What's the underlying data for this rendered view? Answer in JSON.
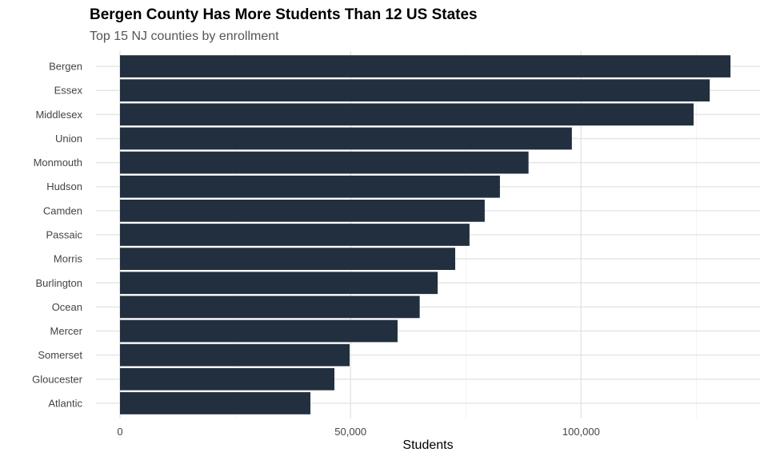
{
  "chart_data": {
    "type": "bar",
    "orientation": "horizontal",
    "title": "Bergen County Has More Students Than 12 US States",
    "subtitle": "Top 15 NJ counties by enrollment",
    "xlabel": "Students",
    "ylabel": "",
    "categories": [
      "Bergen",
      "Essex",
      "Middlesex",
      "Union",
      "Monmouth",
      "Hudson",
      "Camden",
      "Passaic",
      "Morris",
      "Burlington",
      "Ocean",
      "Mercer",
      "Somerset",
      "Gloucester",
      "Atlantic"
    ],
    "values": [
      132400,
      127900,
      124400,
      98000,
      88600,
      82400,
      79100,
      75800,
      72700,
      68900,
      65000,
      60200,
      49800,
      46500,
      41300
    ],
    "xticks": [
      0,
      50000,
      100000
    ],
    "xtick_labels": [
      "0",
      "50,000",
      "100,000"
    ],
    "xlim": [
      -5200,
      138800
    ],
    "grid": true,
    "bar_color": "#222f3e"
  }
}
